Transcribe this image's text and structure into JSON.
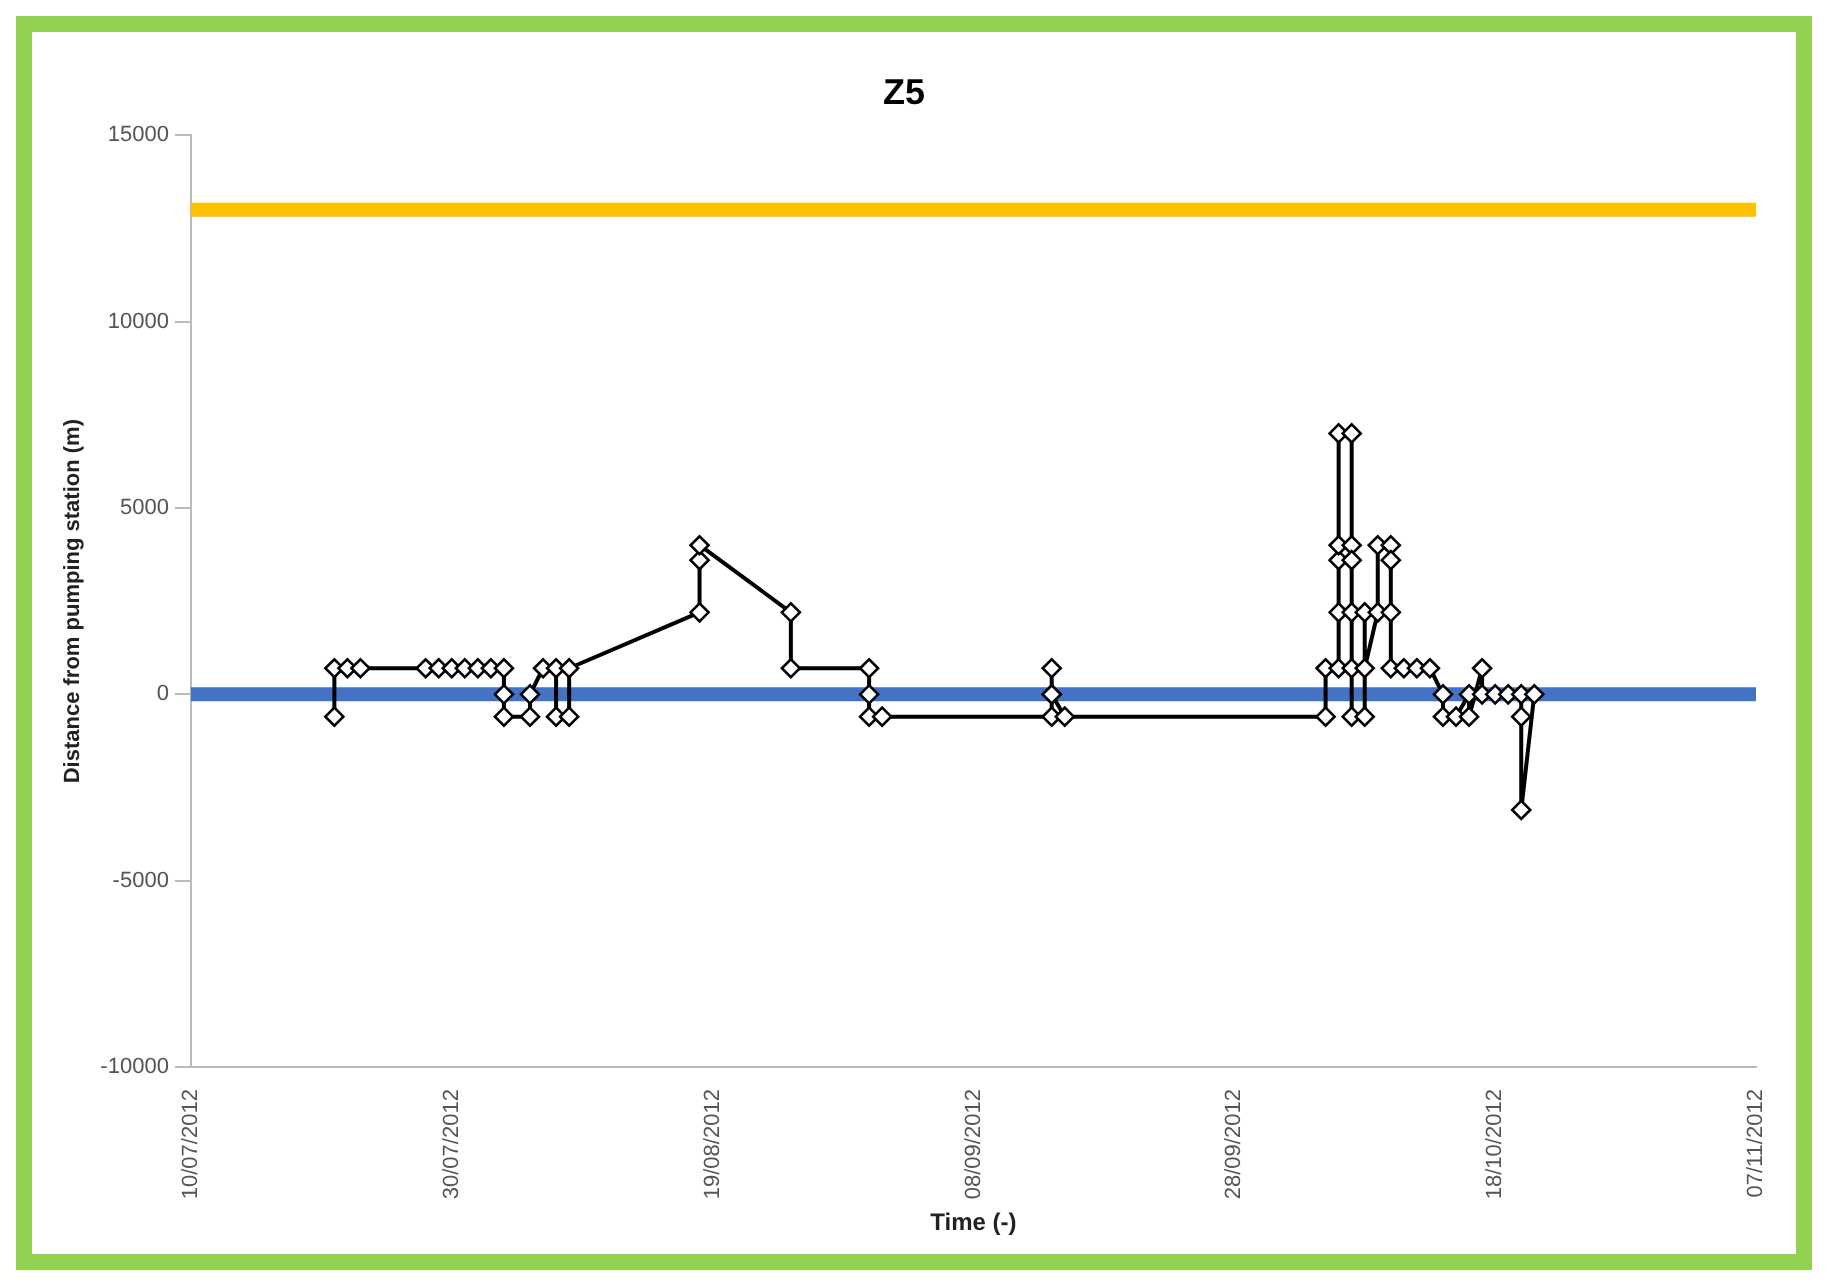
{
  "chart_data": {
    "type": "line",
    "title": "Z5",
    "xlabel": "Time (-)",
    "ylabel": "Distance from pumping station (m)",
    "x": [
      "2012-07-21",
      "2012-07-21",
      "2012-07-22",
      "2012-07-23",
      "2012-07-28",
      "2012-07-29",
      "2012-07-30",
      "2012-07-31",
      "2012-08-01",
      "2012-08-02",
      "2012-08-03",
      "2012-08-03",
      "2012-08-03",
      "2012-08-05",
      "2012-08-05",
      "2012-08-06",
      "2012-08-07",
      "2012-08-07",
      "2012-08-08",
      "2012-08-08",
      "2012-08-18",
      "2012-08-18",
      "2012-08-18",
      "2012-08-25",
      "2012-08-25",
      "2012-08-31",
      "2012-08-31",
      "2012-08-31",
      "2012-09-01",
      "2012-09-14",
      "2012-09-14",
      "2012-09-14",
      "2012-09-14",
      "2012-09-15",
      "2012-10-05",
      "2012-10-05",
      "2012-10-06",
      "2012-10-06",
      "2012-10-06",
      "2012-10-06",
      "2012-10-06",
      "2012-10-07",
      "2012-10-07",
      "2012-10-07",
      "2012-10-07",
      "2012-10-07",
      "2012-10-07",
      "2012-10-08",
      "2012-10-08",
      "2012-10-08",
      "2012-10-09",
      "2012-10-09",
      "2012-10-10",
      "2012-10-10",
      "2012-10-10",
      "2012-10-10",
      "2012-10-11",
      "2012-10-12",
      "2012-10-13",
      "2012-10-14",
      "2012-10-14",
      "2012-10-15",
      "2012-10-16",
      "2012-10-16",
      "2012-10-17",
      "2012-10-17",
      "2012-10-18",
      "2012-10-19",
      "2012-10-20",
      "2012-10-20",
      "2012-10-20",
      "2012-10-21"
    ],
    "values": [
      -600,
      700,
      700,
      700,
      700,
      700,
      700,
      700,
      700,
      700,
      700,
      0,
      -600,
      -600,
      0,
      700,
      700,
      -600,
      -600,
      700,
      2200,
      3600,
      4000,
      2200,
      700,
      700,
      0,
      -600,
      -600,
      -600,
      0,
      700,
      0,
      -600,
      -600,
      700,
      700,
      2200,
      3600,
      4000,
      7000,
      7000,
      4000,
      3600,
      2200,
      700,
      -600,
      -600,
      2200,
      700,
      2200,
      4000,
      4000,
      3600,
      2200,
      700,
      700,
      700,
      700,
      0,
      -600,
      -600,
      0,
      -600,
      700,
      0,
      0,
      0,
      0,
      -600,
      -3100,
      0
    ],
    "color": "#000000",
    "marker": "diamond",
    "line_style": "solid",
    "xlim": [
      "2012-07-10",
      "2012-11-07"
    ],
    "xticks": [
      {
        "value": "2012-07-10",
        "label": "10/07/2012"
      },
      {
        "value": "2012-07-30",
        "label": "30/07/2012"
      },
      {
        "value": "2012-08-19",
        "label": "19/08/2012"
      },
      {
        "value": "2012-09-08",
        "label": "08/09/2012"
      },
      {
        "value": "2012-09-28",
        "label": "28/09/2012"
      },
      {
        "value": "2012-10-18",
        "label": "18/10/2012"
      },
      {
        "value": "2012-11-07",
        "label": "07/11/2012"
      }
    ],
    "ylim": [
      -10000,
      15000
    ],
    "yticks": [
      -10000,
      -5000,
      0,
      5000,
      10000,
      15000
    ],
    "ref_lines": [
      {
        "axis": "y",
        "value": 13000,
        "color": "#ffc000"
      },
      {
        "axis": "y",
        "value": 0,
        "color": "#4472c4"
      }
    ],
    "grid": false,
    "legend": false
  }
}
